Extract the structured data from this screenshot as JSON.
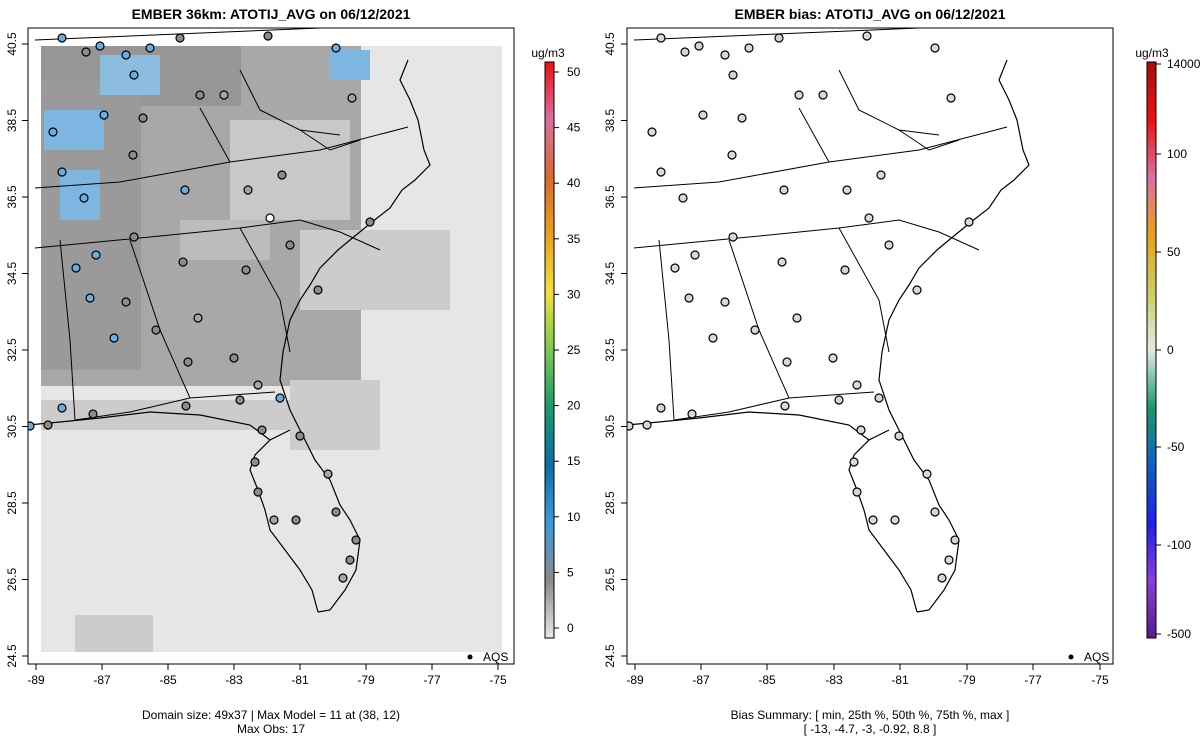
{
  "left_panel": {
    "title": "EMBER 36km: ATOTIJ_AVG on 06/12/2021",
    "x_ticks": [
      "-89",
      "-87",
      "-85",
      "-83",
      "-81",
      "-79",
      "-77",
      "-75"
    ],
    "y_ticks": [
      "24.5",
      "26.5",
      "28.5",
      "30.5",
      "32.5",
      "34.5",
      "36.5",
      "38.5",
      "40.5"
    ],
    "legend_label": "AQS",
    "footer_line1": "Domain size: 49x37 | Max Model = 11 at (38, 12)",
    "footer_line2": "Max Obs: 17"
  },
  "left_colorbar": {
    "unit": "ug/m3",
    "ticks": [
      "50",
      "45",
      "40",
      "35",
      "30",
      "25",
      "20",
      "15",
      "10",
      "5",
      "0"
    ]
  },
  "right_panel": {
    "title": "EMBER bias: ATOTIJ_AVG on 06/12/2021",
    "x_ticks": [
      "-89",
      "-87",
      "-85",
      "-83",
      "-81",
      "-79",
      "-77",
      "-75"
    ],
    "y_ticks": [
      "24.5",
      "26.5",
      "28.5",
      "30.5",
      "32.5",
      "34.5",
      "36.5",
      "38.5",
      "40.5"
    ],
    "legend_label": "AQS",
    "footer_line1": "Bias Summary: [ min, 25th %, 50th %, 75th %, max ]",
    "footer_line2": "[ -13,   -4.7,   -3,   -0.92,   8.8 ]"
  },
  "right_colorbar": {
    "unit": "ug/m3",
    "ticks": [
      "14000",
      "100",
      "50",
      "0",
      "-50",
      "-100",
      "-500"
    ]
  },
  "colors": {
    "land_light": "#e6e6e6",
    "model_gray": "#cccccc",
    "model_mid": "#a6a6a6",
    "model_dark": "#8c8c8c",
    "model_blue": "#6aaee0",
    "obs_near_zero": "#d9d9d9",
    "obs_light_green": "#c8dcc8"
  }
}
